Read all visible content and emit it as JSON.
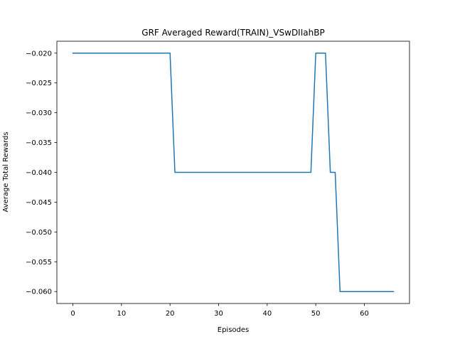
{
  "chart_data": {
    "type": "line",
    "title": "GRF Averaged Reward(TRAIN)_VSwDIIahBP",
    "xlabel": "Episodes",
    "ylabel": "Average Total Rewards",
    "xlim": [
      -3.3,
      69.3
    ],
    "ylim": [
      -0.062,
      -0.018
    ],
    "xticks": [
      0,
      10,
      20,
      30,
      40,
      50,
      60
    ],
    "xtick_labels": [
      "0",
      "10",
      "20",
      "30",
      "40",
      "50",
      "60"
    ],
    "yticks": [
      -0.02,
      -0.025,
      -0.03,
      -0.035,
      -0.04,
      -0.045,
      -0.05,
      -0.055,
      -0.06
    ],
    "ytick_labels": [
      "−0.020",
      "−0.025",
      "−0.030",
      "−0.035",
      "−0.040",
      "−0.045",
      "−0.050",
      "−0.055",
      "−0.060"
    ],
    "grid": false,
    "legend": "none",
    "series": [
      {
        "color": "#1f77b4",
        "x": [
          0,
          20,
          21,
          49,
          50,
          52,
          53,
          54,
          55,
          66
        ],
        "y": [
          -0.02,
          -0.02,
          -0.04,
          -0.04,
          -0.02,
          -0.02,
          -0.04,
          -0.04,
          -0.06,
          -0.06
        ]
      }
    ]
  }
}
